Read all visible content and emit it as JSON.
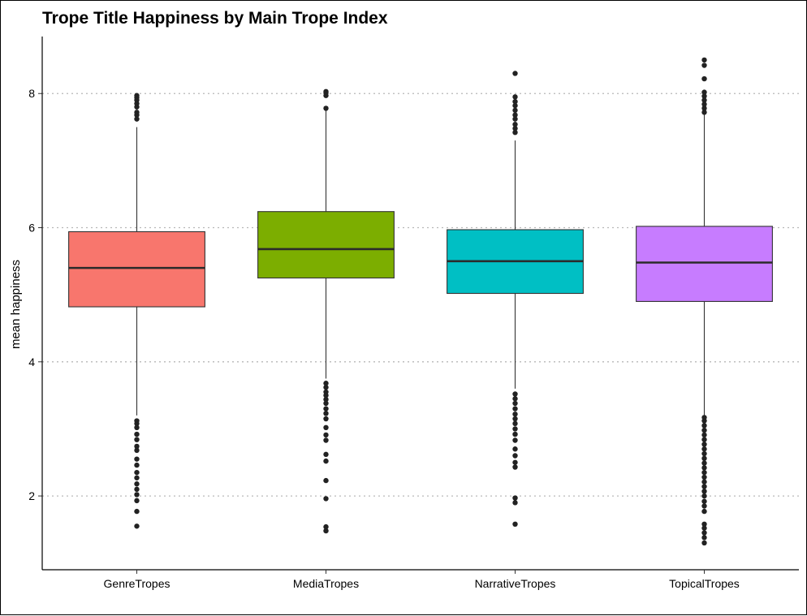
{
  "chart_data": {
    "type": "boxplot",
    "title": "Trope Title Happiness by Main Trope Index",
    "xlabel": "",
    "ylabel": "mean happiness",
    "ylim": [
      0.9,
      8.85
    ],
    "yticks": [
      2,
      4,
      6,
      8
    ],
    "grid": "horizontal-dotted",
    "legend": "none",
    "categories": [
      "GenreTropes",
      "MediaTropes",
      "NarrativeTropes",
      "TopicalTropes"
    ],
    "colors": [
      "#F8766D",
      "#7CAE00",
      "#00BFC4",
      "#C77CFF"
    ],
    "series": [
      {
        "category": "GenreTropes",
        "whisker_low": 3.2,
        "q1": 4.82,
        "median": 5.4,
        "q3": 5.94,
        "whisker_high": 7.5,
        "outliers": [
          1.55,
          1.77,
          1.93,
          2.02,
          2.1,
          2.18,
          2.27,
          2.35,
          2.46,
          2.55,
          2.68,
          2.74,
          2.84,
          2.92,
          3.02,
          3.08,
          3.12,
          7.62,
          7.68,
          7.72,
          7.8,
          7.85,
          7.9,
          7.94,
          7.97
        ]
      },
      {
        "category": "MediaTropes",
        "whisker_low": 3.75,
        "q1": 5.25,
        "median": 5.68,
        "q3": 6.24,
        "whisker_high": 7.75,
        "outliers": [
          1.48,
          1.54,
          1.96,
          2.23,
          2.52,
          2.62,
          2.83,
          2.91,
          3.02,
          3.15,
          3.23,
          3.3,
          3.38,
          3.44,
          3.5,
          3.55,
          3.62,
          3.68,
          7.78,
          7.97,
          8.01,
          8.03
        ]
      },
      {
        "category": "NarrativeTropes",
        "whisker_low": 3.6,
        "q1": 5.02,
        "median": 5.5,
        "q3": 5.97,
        "whisker_high": 7.3,
        "outliers": [
          1.58,
          1.9,
          1.97,
          2.43,
          2.5,
          2.6,
          2.7,
          2.83,
          2.92,
          3.0,
          3.08,
          3.15,
          3.22,
          3.3,
          3.38,
          3.45,
          3.52,
          7.42,
          7.48,
          7.54,
          7.62,
          7.68,
          7.75,
          7.82,
          7.88,
          7.95,
          8.3
        ]
      },
      {
        "category": "TopicalTropes",
        "whisker_low": 3.2,
        "q1": 4.9,
        "median": 5.48,
        "q3": 6.02,
        "whisker_high": 7.7,
        "outliers": [
          1.3,
          1.38,
          1.45,
          1.52,
          1.58,
          1.77,
          1.85,
          1.92,
          2.0,
          2.07,
          2.14,
          2.21,
          2.28,
          2.35,
          2.42,
          2.49,
          2.56,
          2.63,
          2.7,
          2.77,
          2.84,
          2.91,
          2.98,
          3.05,
          3.12,
          3.17,
          7.72,
          7.78,
          7.84,
          7.9,
          7.96,
          8.02,
          8.22,
          8.42,
          8.5
        ]
      }
    ]
  }
}
